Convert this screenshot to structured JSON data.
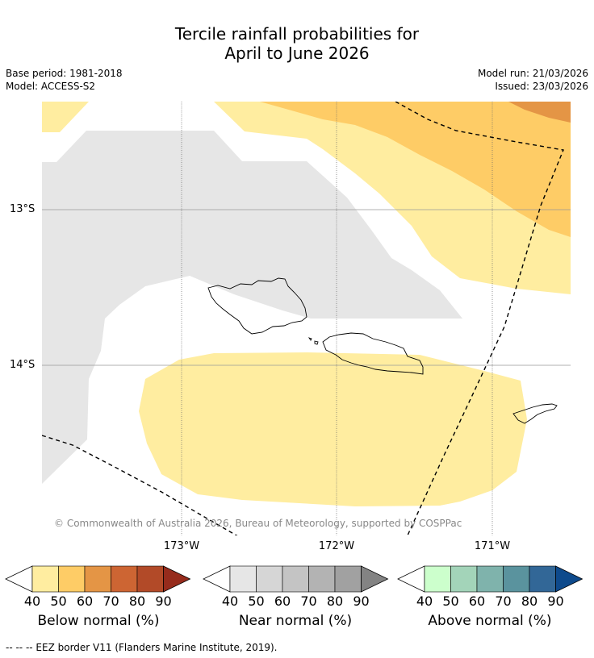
{
  "title": {
    "line1": "Tercile rainfall probabilities for",
    "line2": "April to June 2026"
  },
  "meta": {
    "base_period": "Base period: 1981-2018",
    "model": "Model: ACCESS-S2",
    "model_run": "Model run: 21/03/2026",
    "issued": "Issued: 23/03/2026"
  },
  "map": {
    "lat_labels": [
      "13°S",
      "14°S"
    ],
    "lon_labels": [
      "173°W",
      "172°W",
      "171°W"
    ],
    "copyright": "© Commonwealth of Australia 2026, Bureau of Meteorology, supported by COSPPac",
    "colors": {
      "below_40_50": "#ffeda0",
      "below_50_60": "#fecc66",
      "below_60_70": "#e49545",
      "near_40_50": "#e6e6e6"
    }
  },
  "legends": [
    {
      "title": "Below normal (%)",
      "ticks": [
        "40",
        "50",
        "60",
        "70",
        "80",
        "90"
      ],
      "colors": [
        "#ffffff",
        "#ffeda0",
        "#fecc66",
        "#e49545",
        "#cd6533",
        "#b24a28",
        "#962b1c"
      ]
    },
    {
      "title": "Near normal (%)",
      "ticks": [
        "40",
        "50",
        "60",
        "70",
        "80",
        "90"
      ],
      "colors": [
        "#ffffff",
        "#e6e6e6",
        "#d6d6d6",
        "#c4c4c4",
        "#b3b3b3",
        "#a1a1a1",
        "#838383"
      ]
    },
    {
      "title": "Above normal (%)",
      "ticks": [
        "40",
        "50",
        "60",
        "70",
        "80",
        "90"
      ],
      "colors": [
        "#ffffff",
        "#ccffcc",
        "#a3d4b9",
        "#7fb3ac",
        "#5a939e",
        "#326797",
        "#0e4a8c"
      ]
    }
  ],
  "footnote": "--  --  -- EEZ border V11 (Flanders Marine Institute, 2019)."
}
